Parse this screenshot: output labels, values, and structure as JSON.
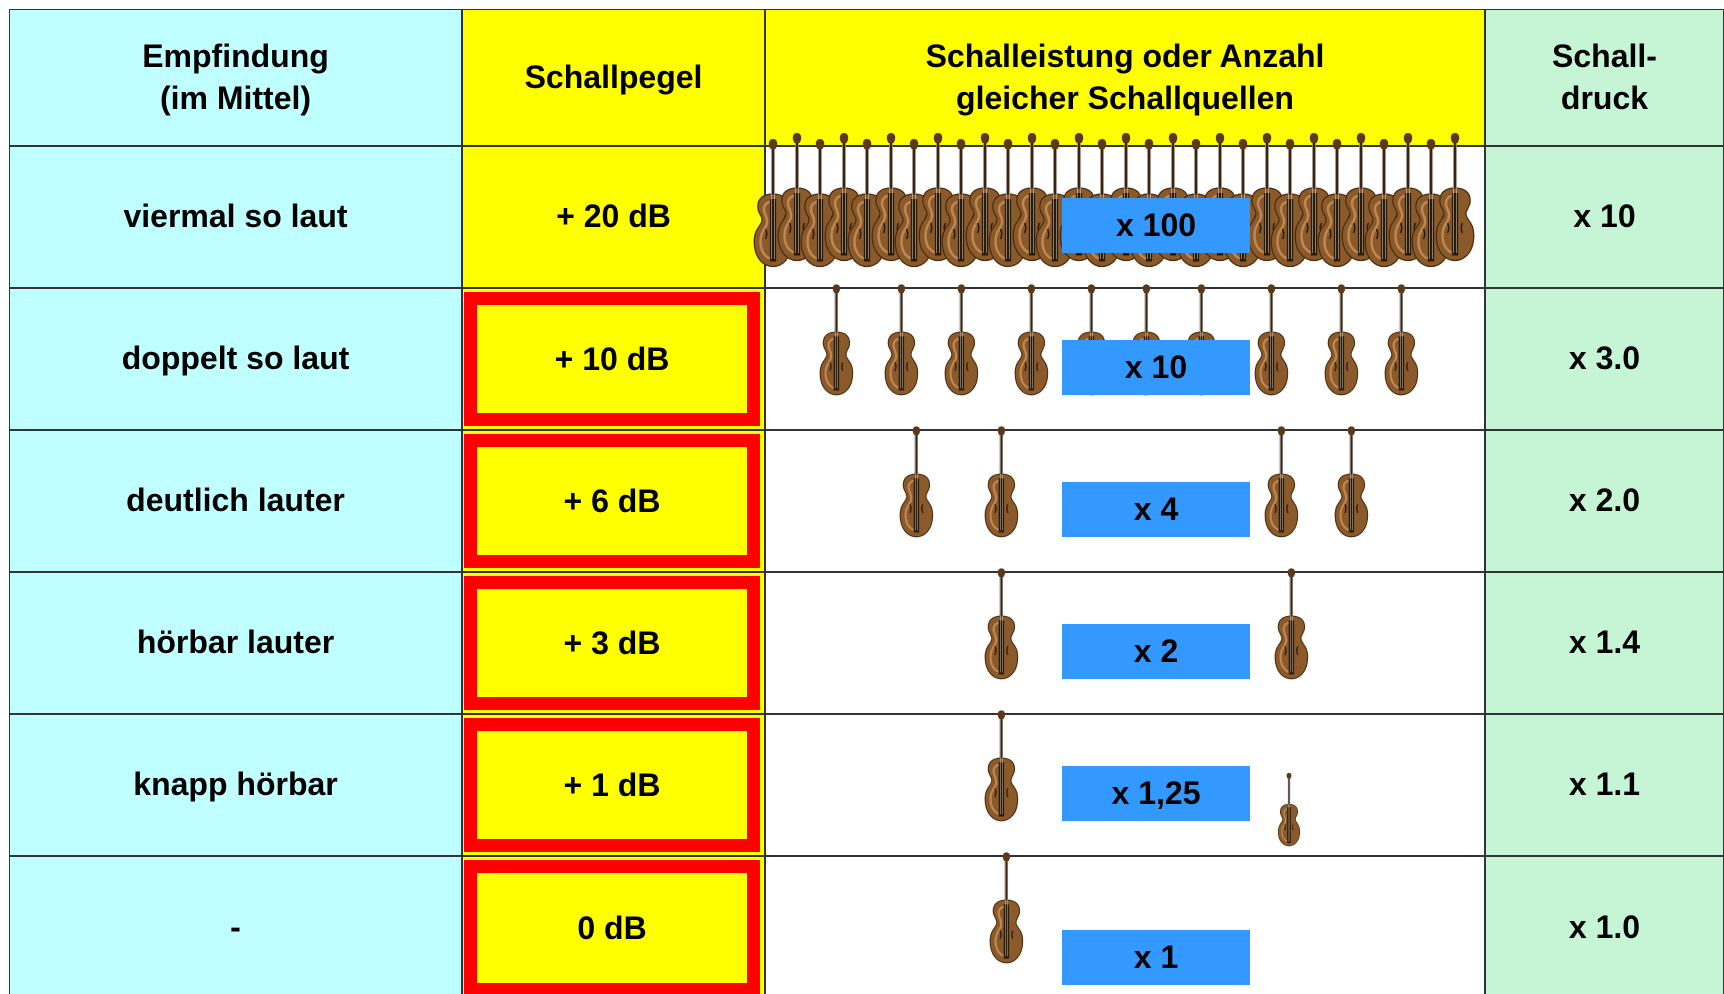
{
  "table": {
    "header": [
      [
        "Empfindung",
        "(im Mittel)"
      ],
      [
        "Schallpegel"
      ],
      [
        "Schalleistung oder Anzahl",
        "gleicher Schallquellen"
      ],
      [
        "Schall-",
        "druck"
      ]
    ],
    "rows": [
      [
        "viermal so laut",
        "+ 20 dB",
        "x 100",
        "x 10"
      ],
      [
        "doppelt so laut",
        "+ 10 dB",
        "x 10",
        "x 3.0"
      ],
      [
        "deutlich lauter",
        "+ 6 dB",
        "x 4",
        "x 2.0"
      ],
      [
        "hörbar lauter",
        "+ 3 dB",
        "x 2",
        "x 1.4"
      ],
      [
        "knapp hörbar",
        "+ 1 dB",
        "x 1,25",
        "x 1.1"
      ],
      [
        "-",
        "0 dB",
        "x 1",
        "x 1.0"
      ]
    ]
  }
}
